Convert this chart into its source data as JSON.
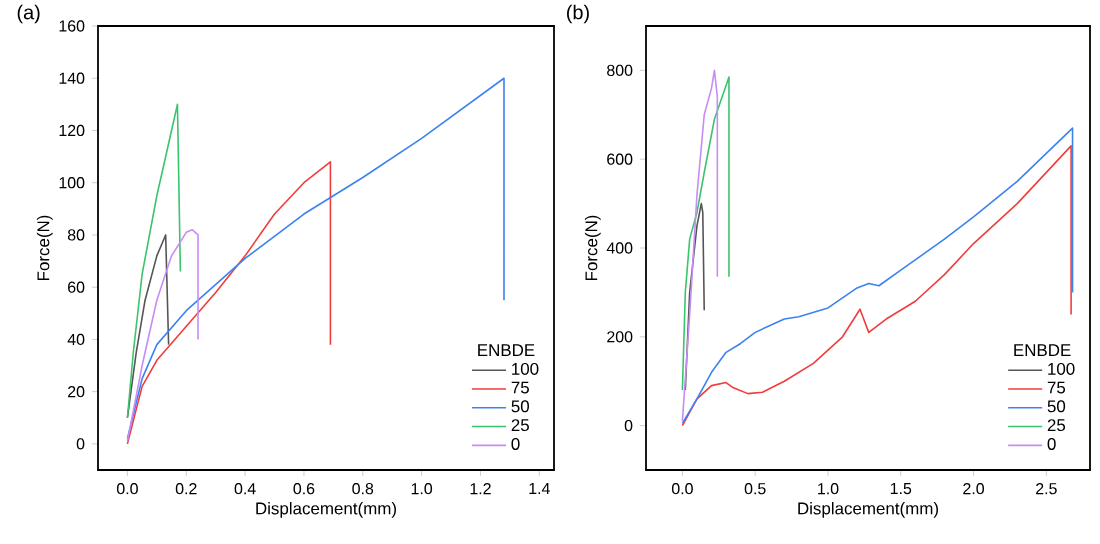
{
  "chart_data": [
    {
      "type": "line",
      "title": "(a)",
      "xlabel": "Displacement(mm)",
      "ylabel": "Force(N)",
      "legend_title": "ENBDE",
      "legend": "bottom right",
      "grid": false,
      "xlim": [
        -0.1,
        1.45
      ],
      "xticks": [
        {
          "value": 0,
          "label": "0.0"
        },
        0.2,
        0.4,
        0.6,
        0.8,
        {
          "value": 1,
          "label": "1.0"
        },
        1.2,
        1.4
      ],
      "ylim": [
        -10,
        160
      ],
      "yticks": [
        0,
        20,
        40,
        60,
        80,
        100,
        120,
        140,
        160
      ],
      "series": [
        {
          "name": "100",
          "color": "#555555",
          "x": [
            0,
            0.03,
            0.06,
            0.1,
            0.13,
            0.14
          ],
          "values": [
            10,
            35,
            55,
            72,
            80,
            38
          ]
        },
        {
          "name": "75",
          "color": "#f03c3c",
          "x": [
            0,
            0.05,
            0.1,
            0.2,
            0.3,
            0.4,
            0.5,
            0.6,
            0.69,
            0.69
          ],
          "values": [
            0,
            22,
            32,
            45,
            58,
            72,
            88,
            100,
            108,
            38
          ]
        },
        {
          "name": "50",
          "color": "#3c82f0",
          "x": [
            0,
            0.05,
            0.1,
            0.2,
            0.3,
            0.4,
            0.6,
            0.8,
            1.0,
            1.28,
            1.28
          ],
          "values": [
            2,
            25,
            38,
            51,
            61,
            71,
            88,
            102,
            117,
            140,
            55
          ]
        },
        {
          "name": "25",
          "color": "#3cc36e",
          "x": [
            0,
            0.02,
            0.05,
            0.1,
            0.15,
            0.17,
            0.18
          ],
          "values": [
            10,
            35,
            65,
            95,
            120,
            130,
            66
          ]
        },
        {
          "name": "0",
          "color": "#c78cf5",
          "x": [
            0,
            0.05,
            0.1,
            0.15,
            0.2,
            0.22,
            0.24,
            0.24
          ],
          "values": [
            1,
            30,
            55,
            72,
            81,
            82,
            80,
            40
          ]
        }
      ]
    },
    {
      "type": "line",
      "title": "(b)",
      "xlabel": "Displacement(mm)",
      "ylabel": "Force(N)",
      "legend_title": "ENBDE",
      "legend": "bottom right",
      "grid": false,
      "xlim": [
        -0.25,
        2.8
      ],
      "xticks": [
        {
          "value": 0,
          "label": "0.0"
        },
        0.5,
        {
          "value": 1,
          "label": "1.0"
        },
        1.5,
        {
          "value": 2,
          "label": "2.0"
        },
        2.5
      ],
      "ylim": [
        -100,
        900
      ],
      "yticks": [
        0,
        200,
        400,
        600,
        800
      ],
      "series": [
        {
          "name": "100",
          "color": "#555555",
          "x": [
            0.02,
            0.05,
            0.1,
            0.13,
            0.14,
            0.15
          ],
          "values": [
            80,
            300,
            450,
            500,
            480,
            260
          ]
        },
        {
          "name": "75",
          "color": "#f03c3c",
          "x": [
            0,
            0.1,
            0.2,
            0.3,
            0.35,
            0.45,
            0.55,
            0.7,
            0.9,
            1.1,
            1.22,
            1.28,
            1.4,
            1.6,
            1.8,
            2.0,
            2.3,
            2.67,
            2.67
          ],
          "values": [
            0,
            60,
            90,
            97,
            85,
            72,
            75,
            100,
            140,
            200,
            262,
            210,
            240,
            280,
            340,
            410,
            500,
            630,
            250
          ]
        },
        {
          "name": "50",
          "color": "#3c82f0",
          "x": [
            0,
            0.1,
            0.2,
            0.3,
            0.4,
            0.5,
            0.7,
            0.8,
            1.0,
            1.2,
            1.28,
            1.35,
            1.5,
            1.8,
            2.0,
            2.3,
            2.68,
            2.68
          ],
          "values": [
            5,
            60,
            120,
            165,
            185,
            210,
            240,
            245,
            265,
            310,
            320,
            315,
            350,
            420,
            470,
            550,
            670,
            300
          ]
        },
        {
          "name": "25",
          "color": "#3cc36e",
          "x": [
            0,
            0.02,
            0.05,
            0.1,
            0.15,
            0.22,
            0.32,
            0.32
          ],
          "values": [
            80,
            300,
            420,
            480,
            570,
            690,
            785,
            335
          ]
        },
        {
          "name": "0",
          "color": "#c78cf5",
          "x": [
            0,
            0.05,
            0.1,
            0.15,
            0.2,
            0.22,
            0.24,
            0.24
          ],
          "values": [
            10,
            250,
            520,
            700,
            760,
            800,
            740,
            335
          ]
        }
      ]
    }
  ]
}
